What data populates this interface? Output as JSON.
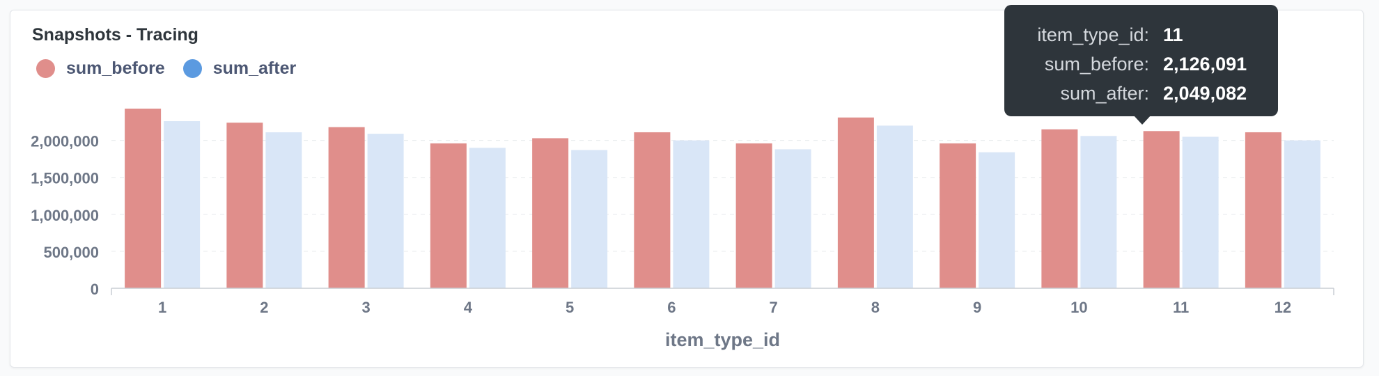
{
  "chart_data": {
    "type": "bar",
    "title": "Snapshots - Tracing",
    "xlabel": "item_type_id",
    "ylabel": "",
    "categories": [
      "1",
      "2",
      "3",
      "4",
      "5",
      "6",
      "7",
      "8",
      "9",
      "10",
      "11",
      "12"
    ],
    "series": [
      {
        "name": "sum_before",
        "color": "#e08e8b",
        "values": [
          2430000,
          2240000,
          2180000,
          1960000,
          2030000,
          2110000,
          1960000,
          2310000,
          1960000,
          2150000,
          2126091,
          2110000
        ]
      },
      {
        "name": "sum_after",
        "color": "#d9e6f7",
        "values": [
          2260000,
          2110000,
          2090000,
          1900000,
          1870000,
          2000000,
          1880000,
          2200000,
          1840000,
          2060000,
          2049082,
          2000000
        ]
      }
    ],
    "ylim": [
      0,
      2430000
    ],
    "yticks": [
      0,
      500000,
      1000000,
      1500000,
      2000000
    ],
    "ytick_labels": [
      "0",
      "500,000",
      "1,000,000",
      "1,500,000",
      "2,000,000"
    ],
    "grid": true,
    "legend_position": "top-left"
  },
  "legend": {
    "items": [
      {
        "label": "sum_before",
        "color": "#e08e8b"
      },
      {
        "label": "sum_after",
        "color": "#5b9ae0"
      }
    ]
  },
  "tooltip": {
    "rows": [
      {
        "key": "item_type_id:",
        "value": "11"
      },
      {
        "key": "sum_before:",
        "value": "2,126,091"
      },
      {
        "key": "sum_after:",
        "value": "2,049,082"
      }
    ]
  }
}
